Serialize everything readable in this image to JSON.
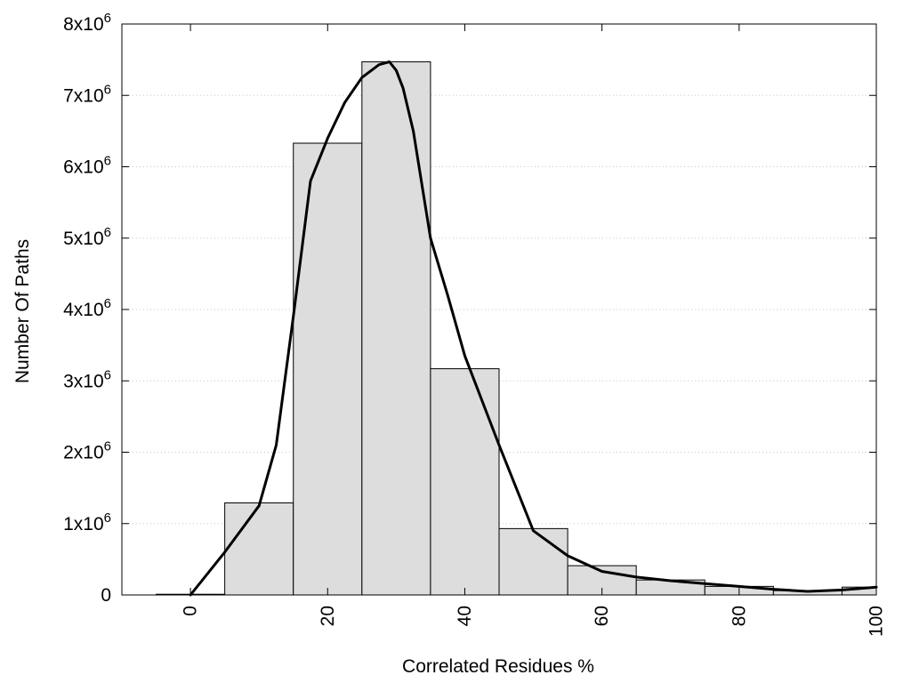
{
  "chart_data": {
    "type": "bar",
    "title": "",
    "xlabel": "Correlated Residues %",
    "ylabel": "Number Of Paths",
    "xlim": [
      -10,
      100
    ],
    "ylim": [
      0,
      8000000
    ],
    "grid": true,
    "legend": "",
    "colors": {
      "bar_fill": "#dddddd",
      "bar_stroke": "#000000",
      "curve": "#000000",
      "grid": "#c8c8c8"
    },
    "x_ticks": [
      {
        "value": 0,
        "label": "0"
      },
      {
        "value": 20,
        "label": "20"
      },
      {
        "value": 40,
        "label": "40"
      },
      {
        "value": 60,
        "label": "60"
      },
      {
        "value": 80,
        "label": "80"
      },
      {
        "value": 100,
        "label": "100"
      }
    ],
    "y_ticks": [
      {
        "value": 0,
        "label": "0"
      },
      {
        "value": 1000000,
        "label": "1x10",
        "exp": "6"
      },
      {
        "value": 2000000,
        "label": "2x10",
        "exp": "6"
      },
      {
        "value": 3000000,
        "label": "3x10",
        "exp": "6"
      },
      {
        "value": 4000000,
        "label": "4x10",
        "exp": "6"
      },
      {
        "value": 5000000,
        "label": "5x10",
        "exp": "6"
      },
      {
        "value": 6000000,
        "label": "6x10",
        "exp": "6"
      },
      {
        "value": 7000000,
        "label": "7x10",
        "exp": "6"
      },
      {
        "value": 8000000,
        "label": "8x10",
        "exp": "6"
      }
    ],
    "bars": [
      {
        "x_start": -5,
        "x_end": 5,
        "value": 10000
      },
      {
        "x_start": 5,
        "x_end": 15,
        "value": 1290000
      },
      {
        "x_start": 15,
        "x_end": 25,
        "value": 6330000
      },
      {
        "x_start": 25,
        "x_end": 35,
        "value": 7470000
      },
      {
        "x_start": 35,
        "x_end": 45,
        "value": 3170000
      },
      {
        "x_start": 45,
        "x_end": 55,
        "value": 930000
      },
      {
        "x_start": 55,
        "x_end": 65,
        "value": 410000
      },
      {
        "x_start": 65,
        "x_end": 75,
        "value": 210000
      },
      {
        "x_start": 75,
        "x_end": 85,
        "value": 120000
      },
      {
        "x_start": 85,
        "x_end": 95,
        "value": 60000
      },
      {
        "x_start": 95,
        "x_end": 100,
        "value": 110000
      }
    ],
    "series": [
      {
        "type": "line",
        "x": [
          0,
          5,
          10,
          12.5,
          15,
          17.5,
          20,
          22.5,
          25,
          27.5,
          29,
          30,
          31,
          32.5,
          35,
          37.5,
          40,
          45,
          50,
          55,
          60,
          65,
          70,
          75,
          80,
          85,
          90,
          95,
          100
        ],
        "y": [
          0,
          600000,
          1250000,
          2100000,
          3900000,
          5800000,
          6400000,
          6900000,
          7250000,
          7430000,
          7470000,
          7350000,
          7100000,
          6500000,
          5000000,
          4200000,
          3350000,
          2100000,
          900000,
          550000,
          330000,
          250000,
          200000,
          160000,
          120000,
          80000,
          50000,
          70000,
          110000
        ]
      }
    ]
  }
}
